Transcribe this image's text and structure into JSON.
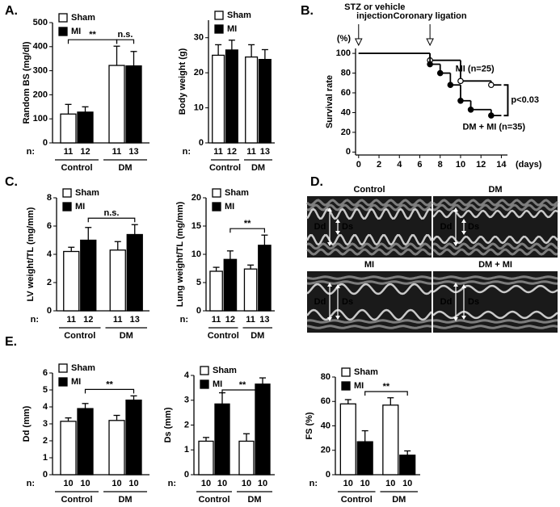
{
  "panel_labels": [
    "A.",
    "B.",
    "C.",
    "D.",
    "E."
  ],
  "chart_data": [
    {
      "type": "bar",
      "y_label": "Random BS (mg/dl)",
      "categories": [
        "Control",
        "DM"
      ],
      "n_prefix": "n:",
      "ylim": [
        0,
        500
      ],
      "yticks": [
        0,
        100,
        200,
        300,
        400,
        500
      ],
      "series": [
        {
          "name": "Sham",
          "color": "#ffffff",
          "values": [
            120,
            322
          ],
          "errors": [
            40,
            80
          ],
          "n": [
            11,
            11
          ]
        },
        {
          "name": "MI",
          "color": "#000000",
          "values": [
            128,
            320
          ],
          "errors": [
            22,
            60
          ],
          "n": [
            12,
            13
          ]
        }
      ],
      "annotations": [
        {
          "text": "**"
        },
        {
          "text": "n.s."
        }
      ]
    },
    {
      "type": "bar",
      "y_label": "Body weight (g)",
      "categories": [
        "Control",
        "DM"
      ],
      "n_prefix": "n:",
      "ylim": [
        0,
        35
      ],
      "yticks": [
        0,
        10,
        20,
        30
      ],
      "series": [
        {
          "name": "Sham",
          "color": "#ffffff",
          "values": [
            25,
            24.5
          ],
          "errors": [
            3,
            3.5
          ],
          "n": [
            11,
            11
          ]
        },
        {
          "name": "MI",
          "color": "#000000",
          "values": [
            26.5,
            23.8
          ],
          "errors": [
            2.8,
            2.8
          ],
          "n": [
            12,
            13
          ]
        }
      ]
    },
    {
      "type": "line",
      "y_label": "Survival rate",
      "y_unit": "(%)",
      "x_unit": "(days)",
      "xlim": [
        -0.3,
        14.6
      ],
      "ylim": [
        -3,
        105
      ],
      "xticks": [
        0,
        2,
        4,
        6,
        8,
        10,
        12,
        14
      ],
      "yticks": [
        0,
        20,
        40,
        60,
        80,
        100
      ],
      "series": [
        {
          "name": "MI (n=25)",
          "color": "#000000",
          "marker": "open",
          "x": [
            0,
            7,
            10,
            13
          ],
          "values": [
            100,
            93,
            72,
            68
          ]
        },
        {
          "name": "DM + MI (n=35)",
          "color": "#000000",
          "marker": "filled",
          "x": [
            0,
            7,
            8,
            9,
            10,
            11,
            13
          ],
          "values": [
            100,
            89,
            80,
            68,
            52,
            43,
            37
          ]
        }
      ],
      "annotations": [
        {
          "text": [
            "STZ or vehicle",
            "injection"
          ],
          "x": 0
        },
        {
          "text": [
            "Coronary ligation"
          ],
          "x": 7
        },
        {
          "text": [
            "p<0.03"
          ]
        }
      ]
    },
    {
      "type": "bar",
      "y_label": "LV weight/TL (mg/mm)",
      "categories": [
        "Control",
        "DM"
      ],
      "n_prefix": "n:",
      "ylim": [
        0,
        8
      ],
      "yticks": [
        0,
        2,
        4,
        6,
        8
      ],
      "series": [
        {
          "name": "Sham",
          "color": "#ffffff",
          "values": [
            4.2,
            4.3
          ],
          "errors": [
            0.3,
            0.6
          ],
          "n": [
            11,
            11
          ]
        },
        {
          "name": "MI",
          "color": "#000000",
          "values": [
            5.0,
            5.4
          ],
          "errors": [
            0.9,
            0.7
          ],
          "n": [
            12,
            13
          ]
        }
      ],
      "annotations": [
        {
          "text": "n.s."
        }
      ]
    },
    {
      "type": "bar",
      "y_label": "Lung weight/TL (mg/mm)",
      "categories": [
        "Control",
        "DM"
      ],
      "n_prefix": "n:",
      "ylim": [
        0,
        20
      ],
      "yticks": [
        0,
        5,
        10,
        15,
        20
      ],
      "series": [
        {
          "name": "Sham",
          "color": "#ffffff",
          "values": [
            7.0,
            7.4
          ],
          "errors": [
            0.7,
            0.7
          ],
          "n": [
            11,
            11
          ]
        },
        {
          "name": "MI",
          "color": "#000000",
          "values": [
            9.1,
            11.6
          ],
          "errors": [
            1.5,
            1.8
          ],
          "n": [
            12,
            13
          ]
        }
      ],
      "annotations": [
        {
          "text": "**"
        }
      ]
    },
    {
      "type": "bar",
      "y_label": "Dd (mm)",
      "categories": [
        "Control",
        "DM"
      ],
      "n_prefix": "n:",
      "ylim": [
        0,
        6
      ],
      "yticks": [
        0,
        1,
        2,
        3,
        4,
        5,
        6
      ],
      "series": [
        {
          "name": "Sham",
          "color": "#ffffff",
          "values": [
            3.15,
            3.2
          ],
          "errors": [
            0.2,
            0.3
          ],
          "n": [
            10,
            10
          ]
        },
        {
          "name": "MI",
          "color": "#000000",
          "values": [
            3.9,
            4.4
          ],
          "errors": [
            0.3,
            0.25
          ],
          "n": [
            10,
            10
          ]
        }
      ],
      "annotations": [
        {
          "text": "**"
        }
      ]
    },
    {
      "type": "bar",
      "y_label": "Ds (mm)",
      "categories": [
        "Control",
        "DM"
      ],
      "n_prefix": "n:",
      "ylim": [
        0,
        4
      ],
      "yticks": [
        0,
        1,
        2,
        3,
        4
      ],
      "series": [
        {
          "name": "Sham",
          "color": "#ffffff",
          "values": [
            1.35,
            1.35
          ],
          "errors": [
            0.15,
            0.3
          ],
          "n": [
            10,
            10
          ]
        },
        {
          "name": "MI",
          "color": "#000000",
          "values": [
            2.85,
            3.65
          ],
          "errors": [
            0.45,
            0.25
          ],
          "n": [
            10,
            10
          ]
        }
      ],
      "annotations": [
        {
          "text": "**"
        }
      ]
    },
    {
      "type": "bar",
      "y_label": "FS (%)",
      "categories": [
        "Control",
        "DM"
      ],
      "n_prefix": "n:",
      "ylim": [
        0,
        80
      ],
      "yticks": [
        0,
        20,
        40,
        60,
        80
      ],
      "series": [
        {
          "name": "Sham",
          "color": "#ffffff",
          "values": [
            58,
            57
          ],
          "errors": [
            3.5,
            6
          ],
          "n": [
            10,
            10
          ]
        },
        {
          "name": "MI",
          "color": "#000000",
          "values": [
            27,
            16
          ],
          "errors": [
            9,
            3.5
          ],
          "n": [
            10,
            10
          ]
        }
      ],
      "annotations": [
        {
          "text": "**"
        }
      ]
    }
  ],
  "echo": {
    "panels": [
      {
        "title": "Control",
        "labels": [
          "Dd",
          "Ds"
        ]
      },
      {
        "title": "DM",
        "labels": [
          "Dd",
          "Ds"
        ]
      },
      {
        "title": "MI",
        "labels": [
          "Dd",
          "Ds"
        ]
      },
      {
        "title": "DM + MI",
        "labels": [
          "Dd",
          "Ds"
        ]
      }
    ]
  }
}
